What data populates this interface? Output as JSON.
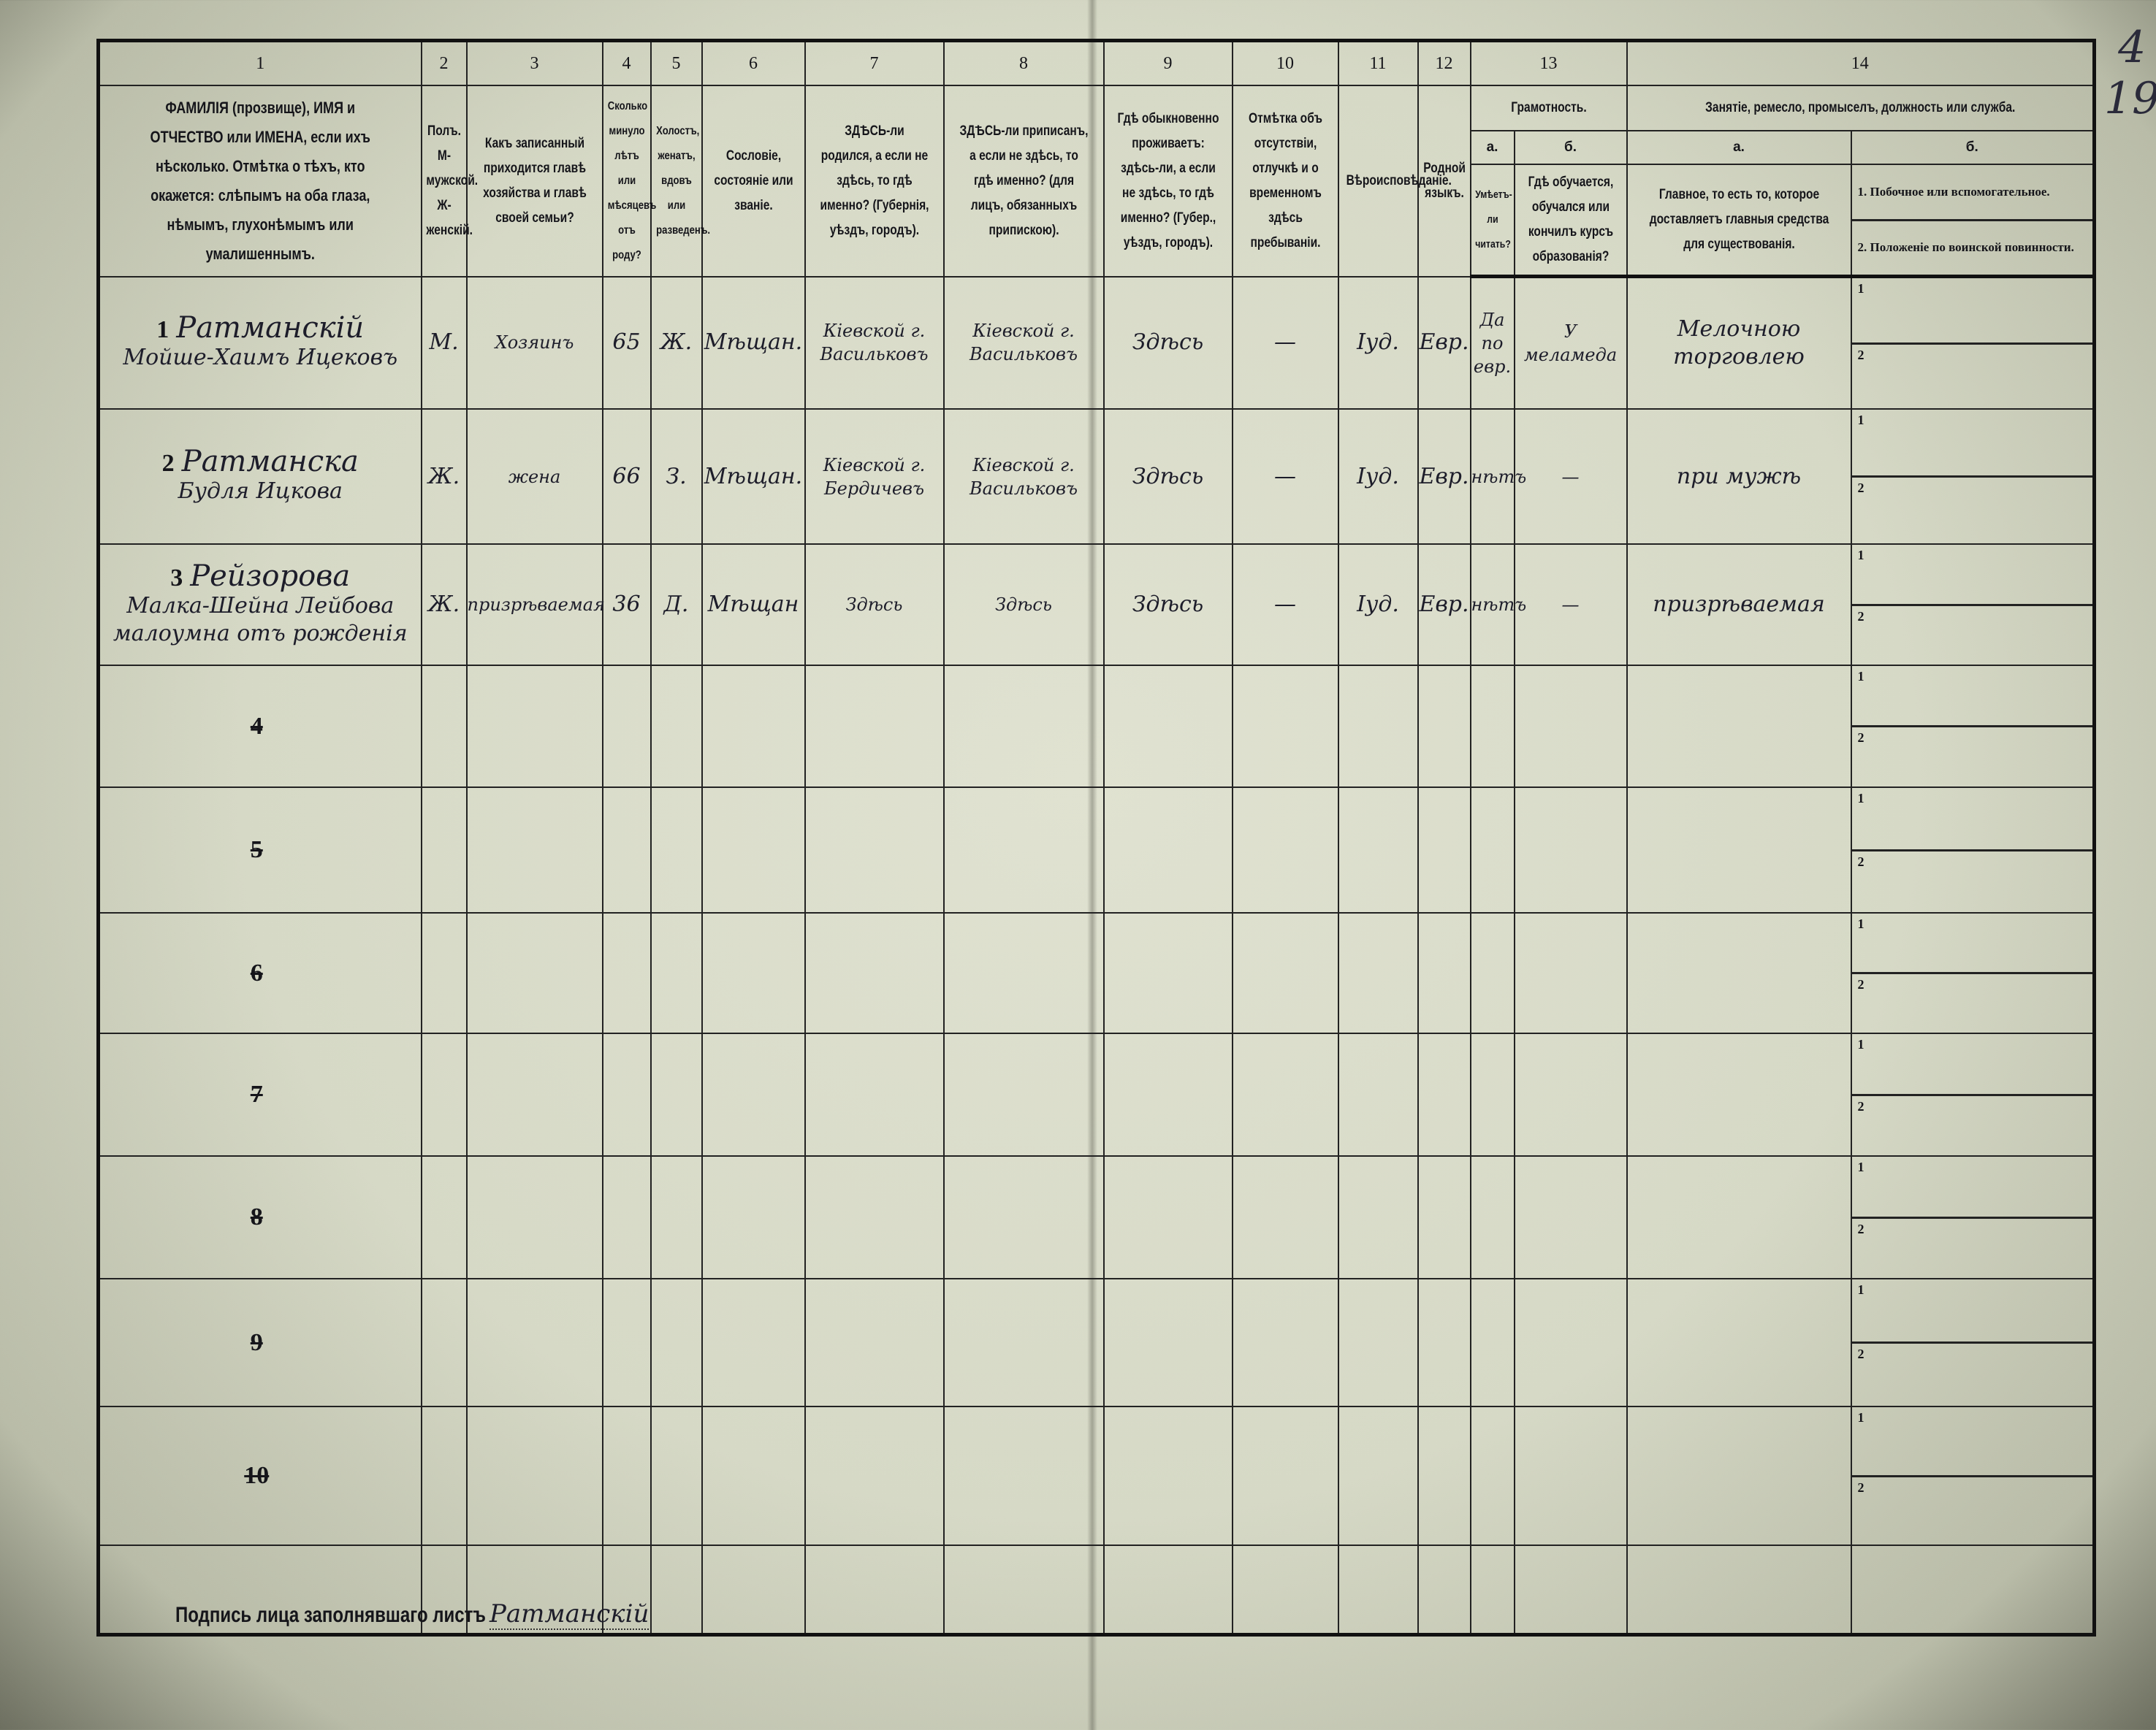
{
  "corner_mark": {
    "top": "4",
    "bottom": "19"
  },
  "header": {
    "numbers": [
      "1",
      "2",
      "3",
      "4",
      "5",
      "6",
      "7",
      "8",
      "9",
      "10",
      "11",
      "12",
      "13",
      "14"
    ],
    "col1": "ФАМИЛІЯ (прозвище), ИМЯ и ОТЧЕСТВО или ИМЕНА, если ихъ нѣсколько. Отмѣтка о тѣхъ, кто окажется: слѣпымъ на оба глаза, нѣмымъ, глухонѣмымъ или умалишеннымъ.",
    "col2": "Полъ. М-мужской. Ж-женскій.",
    "col3": "Какъ записанный приходится главѣ хозяйства и главѣ своей семьи?",
    "col4": "Сколько минуло лѣтъ или мѣсяцевъ отъ роду?",
    "col5": "Холостъ, женатъ, вдовъ или разведенъ.",
    "col6": "Сословіе, состояніе или званіе.",
    "col7": "ЗДѢСЬ-ли родился, а если не здѣсь, то гдѣ именно? (Губернія, уѣздъ, городъ).",
    "col8": "ЗДѢСЬ-ли приписанъ, а если не здѣсь, то гдѣ именно? (для лицъ, обязанныхъ припискою).",
    "col9": "Гдѣ обыкновенно проживаетъ: здѣсь-ли, а если не здѣсь, то гдѣ именно? (Губер., уѣздъ, городъ).",
    "col10": "Отмѣтка объ отсутствіи, отлучкѣ и о временномъ здѣсь пребываніи.",
    "col11": "Вѣроисповѣданіе.",
    "col12": "Родной языкъ.",
    "col13": "Грамотность.",
    "col13a_letter": "а.",
    "col13b_letter": "б.",
    "col13a": "Умѣетъ-ли читать?",
    "col13b": "Гдѣ обучается, обучался или кончилъ курсъ образованія?",
    "col14": "Занятіе, ремесло, промыселъ, должность или служба.",
    "col14a_letter": "а.",
    "col14b_letter": "б.",
    "col14a": "Главное, то есть то, которое доставляетъ главныя средства для существованія.",
    "col14b_1": "1. Побочное или вспомогательное.",
    "col14b_2": "2. Положеніе по воинской повинности."
  },
  "rows": [
    {
      "num": "1",
      "surname": "Ратманскій",
      "name": "Мойше-Хаимъ Ицековъ",
      "sex": "М.",
      "relation": "Хозяинъ",
      "age": "65",
      "marital": "Ж.",
      "estate": "Мѣщан.",
      "born": "Кіевской г. Васильковъ",
      "registered": "Кіевской г. Васильковъ",
      "residence": "Здѣсь",
      "absence": "—",
      "religion": "Іуд.",
      "language": "Евр.",
      "can_read": "Да по евр.",
      "education": "У меламеда",
      "occupation": "Мелочною торговлею",
      "sub1": "1",
      "sub2": "2"
    },
    {
      "num": "2",
      "surname": "Ратманска",
      "name": "Будля Ицкова",
      "sex": "Ж.",
      "relation": "жена",
      "age": "66",
      "marital": "З.",
      "estate": "Мѣщан.",
      "born": "Кіевской г. Бердичевъ",
      "registered": "Кіевской г. Васильковъ",
      "residence": "Здѣсь",
      "absence": "—",
      "religion": "Іуд.",
      "language": "Евр.",
      "can_read": "нѣтъ",
      "education": "—",
      "occupation": "при мужѣ",
      "sub1": "1",
      "sub2": "2"
    },
    {
      "num": "3",
      "surname": "Рейзорова",
      "name": "Малка-Шейна Лейбова малоумна отъ рожденія",
      "sex": "Ж.",
      "relation": "призрѣваемая",
      "age": "36",
      "marital": "Д.",
      "estate": "Мѣщан",
      "born": "Здѣсь",
      "registered": "Здѣсь",
      "residence": "Здѣсь",
      "absence": "—",
      "religion": "Іуд.",
      "language": "Евр.",
      "can_read": "нѣтъ",
      "education": "—",
      "occupation": "призрѣваемая",
      "sub1": "1",
      "sub2": "2"
    }
  ],
  "empty_rows": [
    {
      "num": "4",
      "sub1": "1",
      "sub2": "2"
    },
    {
      "num": "5",
      "sub1": "1",
      "sub2": "2"
    },
    {
      "num": "6",
      "sub1": "1",
      "sub2": "2"
    },
    {
      "num": "7",
      "sub1": "1",
      "sub2": "2"
    },
    {
      "num": "8",
      "sub1": "1",
      "sub2": "2"
    },
    {
      "num": "9",
      "sub1": "1",
      "sub2": "2"
    },
    {
      "num": "10",
      "sub1": "1",
      "sub2": "2"
    }
  ],
  "signature": {
    "label": "Подпись лица заполнявшаго листъ",
    "value": "Ратманскій"
  }
}
